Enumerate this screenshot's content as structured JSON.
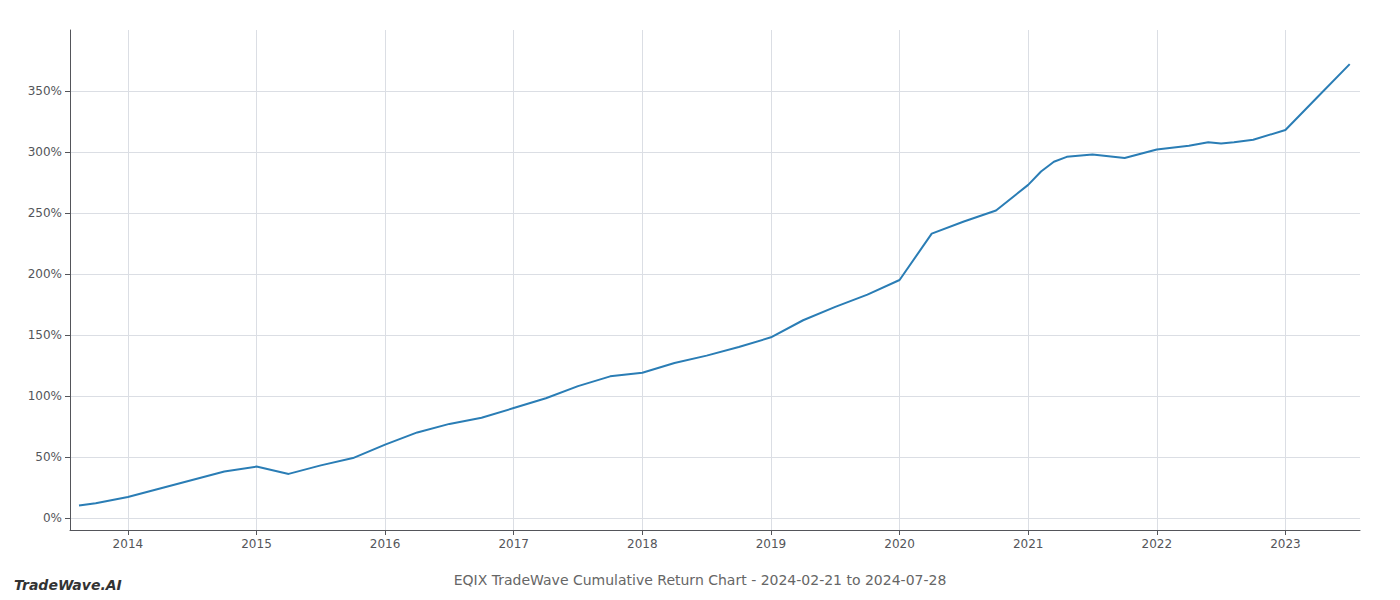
{
  "chart_data": {
    "type": "line",
    "title": "EQIX TradeWave Cumulative Return Chart - 2024-02-21 to 2024-07-28",
    "annotations": [
      "TradeWave.AI"
    ],
    "color": "#2a7db5",
    "grid": true,
    "xlim": [
      2013.55,
      2023.58
    ],
    "ylim": [
      -10,
      400
    ],
    "xticks": [
      2014,
      2015,
      2016,
      2017,
      2018,
      2019,
      2020,
      2021,
      2022,
      2023
    ],
    "yticks": [
      {
        "value": 0,
        "label": "0%"
      },
      {
        "value": 50,
        "label": "50%"
      },
      {
        "value": 100,
        "label": "100%"
      },
      {
        "value": 150,
        "label": "150%"
      },
      {
        "value": 200,
        "label": "200%"
      },
      {
        "value": 250,
        "label": "250%"
      },
      {
        "value": 300,
        "label": "300%"
      },
      {
        "value": 350,
        "label": "350%"
      }
    ],
    "x": [
      2013.62,
      2013.75,
      2014.0,
      2014.25,
      2014.5,
      2014.75,
      2015.0,
      2015.25,
      2015.5,
      2015.75,
      2016.0,
      2016.25,
      2016.5,
      2016.75,
      2017.0,
      2017.25,
      2017.5,
      2017.75,
      2018.0,
      2018.25,
      2018.5,
      2018.75,
      2019.0,
      2019.25,
      2019.5,
      2019.75,
      2020.0,
      2020.25,
      2020.5,
      2020.75,
      2021.0,
      2021.1,
      2021.2,
      2021.3,
      2021.5,
      2021.75,
      2022.0,
      2022.25,
      2022.4,
      2022.5,
      2022.6,
      2022.75,
      2023.0,
      2023.25,
      2023.5
    ],
    "values": [
      10,
      12,
      17,
      24,
      31,
      38,
      42,
      36,
      43,
      49,
      60,
      70,
      77,
      82,
      90,
      98,
      108,
      116,
      119,
      127,
      133,
      140,
      148,
      162,
      173,
      183,
      195,
      233,
      243,
      252,
      273,
      284,
      292,
      296,
      298,
      295,
      302,
      305,
      308,
      307,
      308,
      310,
      318,
      345,
      372
    ]
  }
}
